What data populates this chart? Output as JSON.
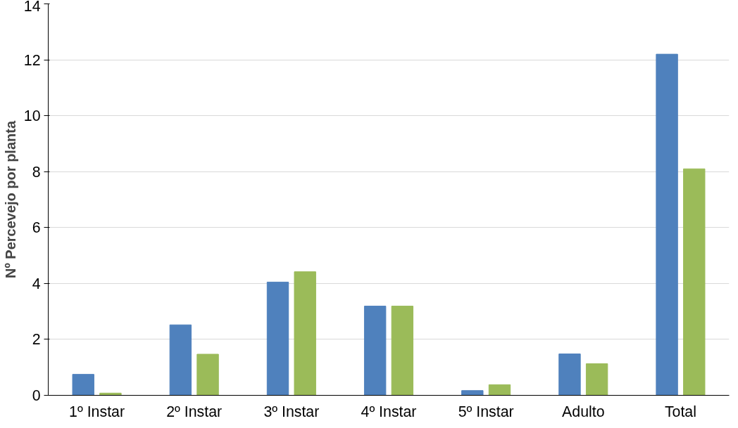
{
  "chart_data": {
    "type": "bar",
    "ylabel": "Nº Percevejo por planta",
    "categories": [
      "1º Instar",
      "2º Instar",
      "3º Instar",
      "4º Instar",
      "5º Instar",
      "Adulto",
      "Total"
    ],
    "series": [
      {
        "color": "#4f81bd",
        "values": [
          0.75,
          2.52,
          4.05,
          3.19,
          0.17,
          1.48,
          12.2
        ]
      },
      {
        "color": "#9bbb59",
        "values": [
          0.08,
          1.47,
          4.42,
          3.19,
          0.38,
          1.13,
          8.1
        ]
      }
    ],
    "ylim": [
      0,
      14
    ],
    "yticks": [
      0,
      2,
      4,
      6,
      8,
      10,
      12,
      14
    ],
    "grid": "y"
  }
}
